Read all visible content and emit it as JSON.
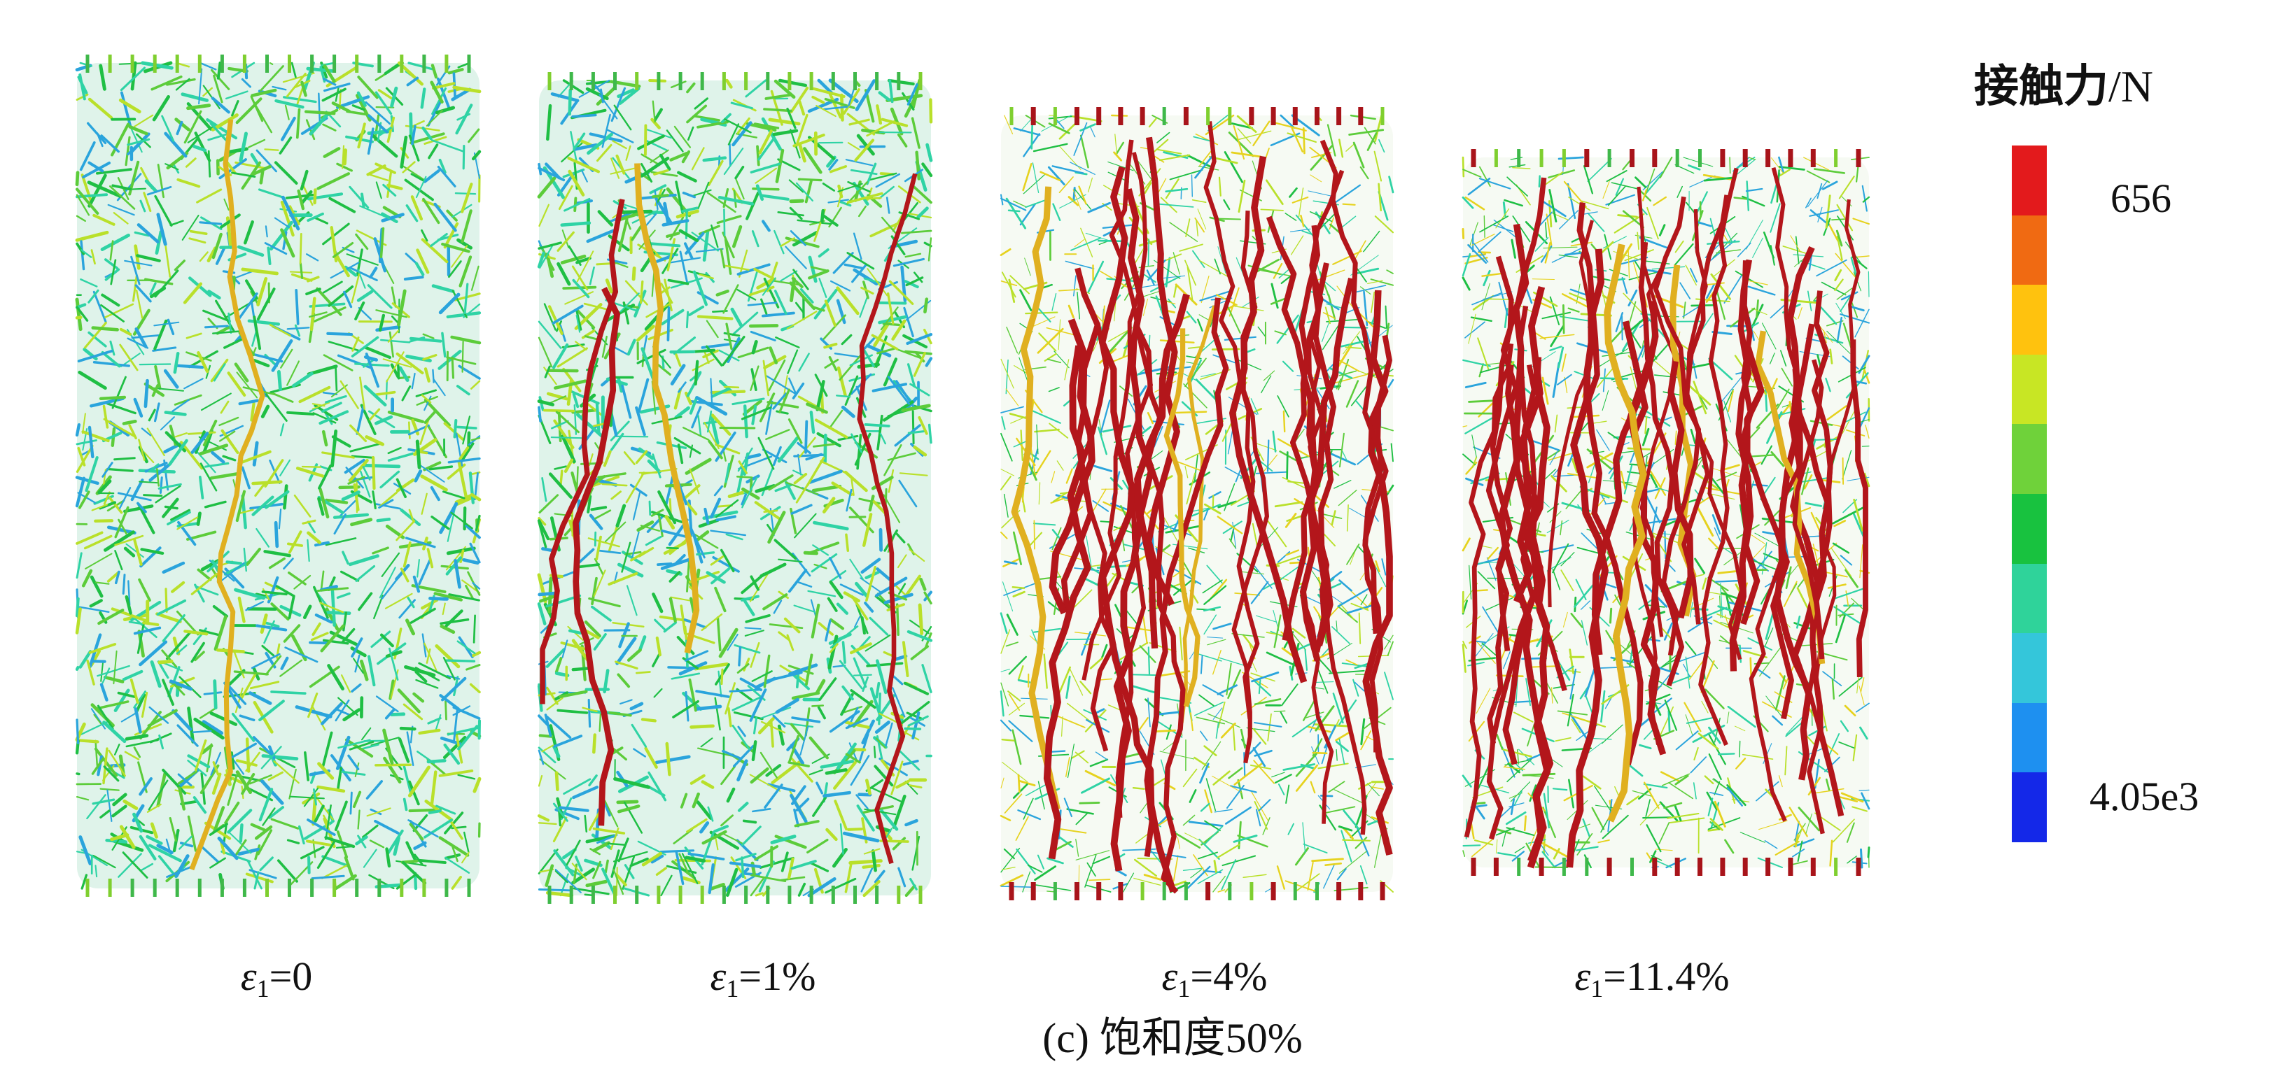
{
  "panels": [
    {
      "label_var": "ε",
      "label_sub": "1",
      "label_rest": "=0",
      "dominant_color": "#22b070",
      "strong_chains": 0.02
    },
    {
      "label_var": "ε",
      "label_sub": "1",
      "label_rest": "=1%",
      "dominant_color": "#2fbf55",
      "strong_chains": 0.06
    },
    {
      "label_var": "ε",
      "label_sub": "1",
      "label_rest": "=4%",
      "dominant_color": "#5cc23c",
      "strong_chains": 0.45
    },
    {
      "label_var": "ε",
      "label_sub": "1",
      "label_rest": "=11.4%",
      "dominant_color": "#7ec63a",
      "strong_chains": 0.6
    }
  ],
  "caption": "(c) 饱和度50%",
  "legend": {
    "title": "接触力",
    "unit": "/N",
    "max_label": "656",
    "min_label": "4.05e3",
    "colors": [
      "#e31a1c",
      "#f06a12",
      "#ffc20e",
      "#c8e624",
      "#6fd23a",
      "#18c23f",
      "#2fd39a",
      "#34c6da",
      "#1e90f0",
      "#1428e8"
    ]
  }
}
